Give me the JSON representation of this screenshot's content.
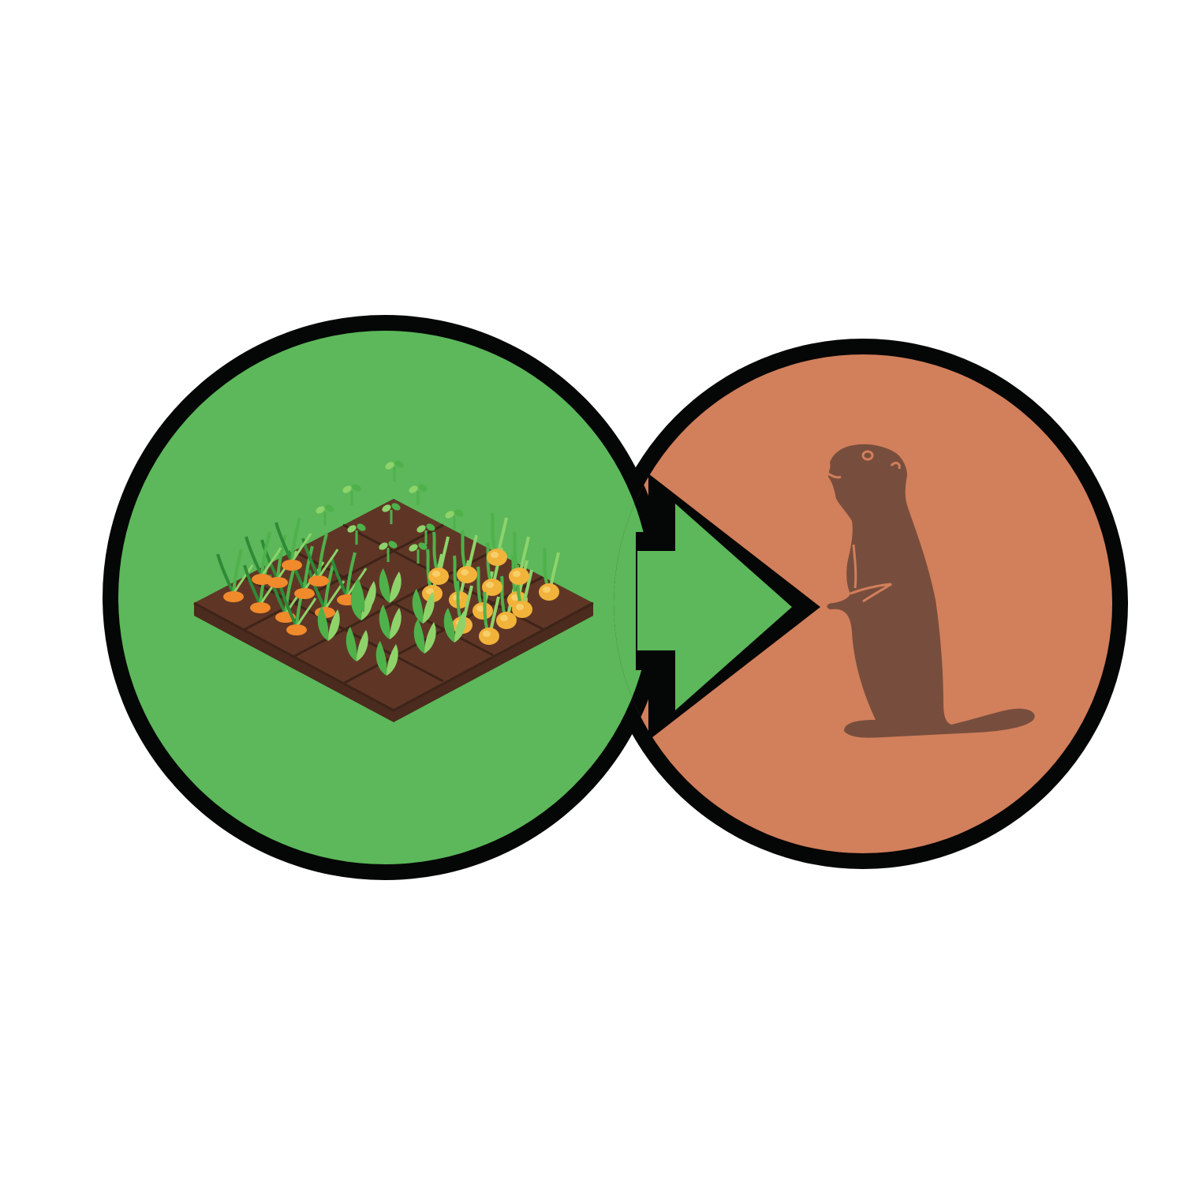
{
  "diagram": {
    "source": {
      "icon": "vegetable-garden-icon",
      "fill": "#5cb85a"
    },
    "target": {
      "icon": "groundhog-icon",
      "fill": "#d27f5b"
    },
    "connector": {
      "icon": "arrow-right-icon",
      "fill": "#5cb85a"
    },
    "colors": {
      "outline": "#050606",
      "soil_top": "#5f3626",
      "soil_side": "#4a2b1e",
      "soil_line": "#3e2418",
      "carrot": "#f08a2a",
      "onion": "#f2b33a",
      "leaf_light": "#8ed36a",
      "leaf": "#4fb14a",
      "leaf_dark": "#2f8a37",
      "animal": "#774e3d"
    }
  }
}
